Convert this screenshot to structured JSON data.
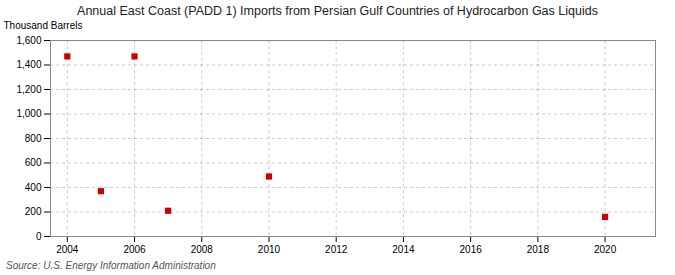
{
  "chart_data": {
    "type": "scatter",
    "title": "Annual East Coast (PADD 1) Imports from Persian Gulf Countries of Hydrocarbon Gas Liquids",
    "ylabel": "Thousand Barrels",
    "annotations": [
      "Source: U.S. Energy Information Administration"
    ],
    "x": [
      2004,
      2005,
      2006,
      2007,
      2010,
      2020
    ],
    "values": [
      1470,
      370,
      1470,
      210,
      490,
      160
    ],
    "color": "#cc0000",
    "marker": "square",
    "xlim": [
      2003.5,
      2021.5
    ],
    "xticks": [
      2004,
      2006,
      2008,
      2010,
      2012,
      2014,
      2016,
      2018,
      2020
    ],
    "ylim": [
      0,
      1600
    ],
    "yticks": [
      0,
      200,
      400,
      600,
      800,
      {
        "value": 1000,
        "label": "1,000"
      },
      {
        "value": 1200,
        "label": "1,200"
      },
      {
        "value": 1400,
        "label": "1,400"
      },
      {
        "value": 1600,
        "label": "1,600"
      }
    ],
    "grid": true
  }
}
